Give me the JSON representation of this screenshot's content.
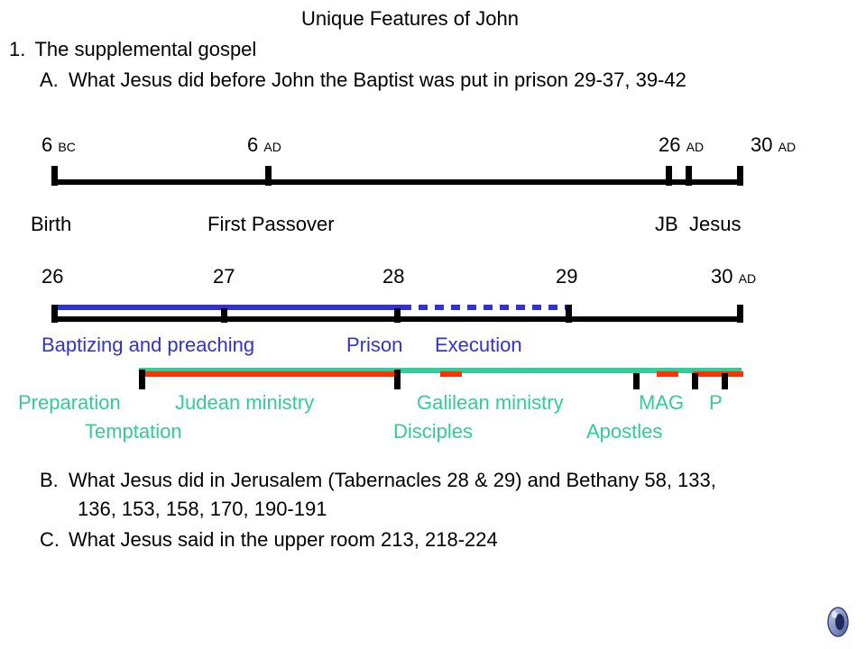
{
  "title": "Unique Features of John",
  "point1": {
    "number": "1.",
    "text": "The supplemental gospel"
  },
  "pointA": {
    "letter": "A.",
    "text": "What Jesus did before John the Baptist was put in prison  29-37, 39-42"
  },
  "timeline1": {
    "labels": [
      {
        "num": "6",
        "era": "BC"
      },
      {
        "num": "6",
        "era": "AD"
      },
      {
        "num": "26",
        "era": "AD"
      },
      {
        "num": "30",
        "era": "AD"
      }
    ],
    "events": [
      "Birth",
      "First Passover",
      "JB",
      "Jesus"
    ]
  },
  "timeline2": {
    "years": [
      "26",
      "27",
      "28",
      "29"
    ],
    "last": {
      "num": "30",
      "era": "AD"
    },
    "baptist_labels": [
      "Baptizing and preaching",
      "Prison",
      "Execution"
    ],
    "jesus_labels_top": [
      "Preparation",
      "Judean ministry",
      "Galilean ministry",
      "MAG",
      "P"
    ],
    "jesus_labels_bottom": [
      "Temptation",
      "Disciples",
      "Apostles"
    ]
  },
  "pointB": {
    "letter": "B.",
    "line1": "What Jesus did in Jerusalem (Tabernacles 28 & 29) and Bethany 58, 133,",
    "line2": "136, 153, 158, 170, 190-191"
  },
  "pointC": {
    "letter": "C.",
    "text": "What Jesus said in the upper room 213, 218-224"
  },
  "icons": {
    "speaker": "speaker-icon"
  },
  "colors": {
    "baptist": "#3333cc",
    "jesus_ministry": "#33cc99",
    "events": "#ff3300",
    "axis": "#000000"
  }
}
